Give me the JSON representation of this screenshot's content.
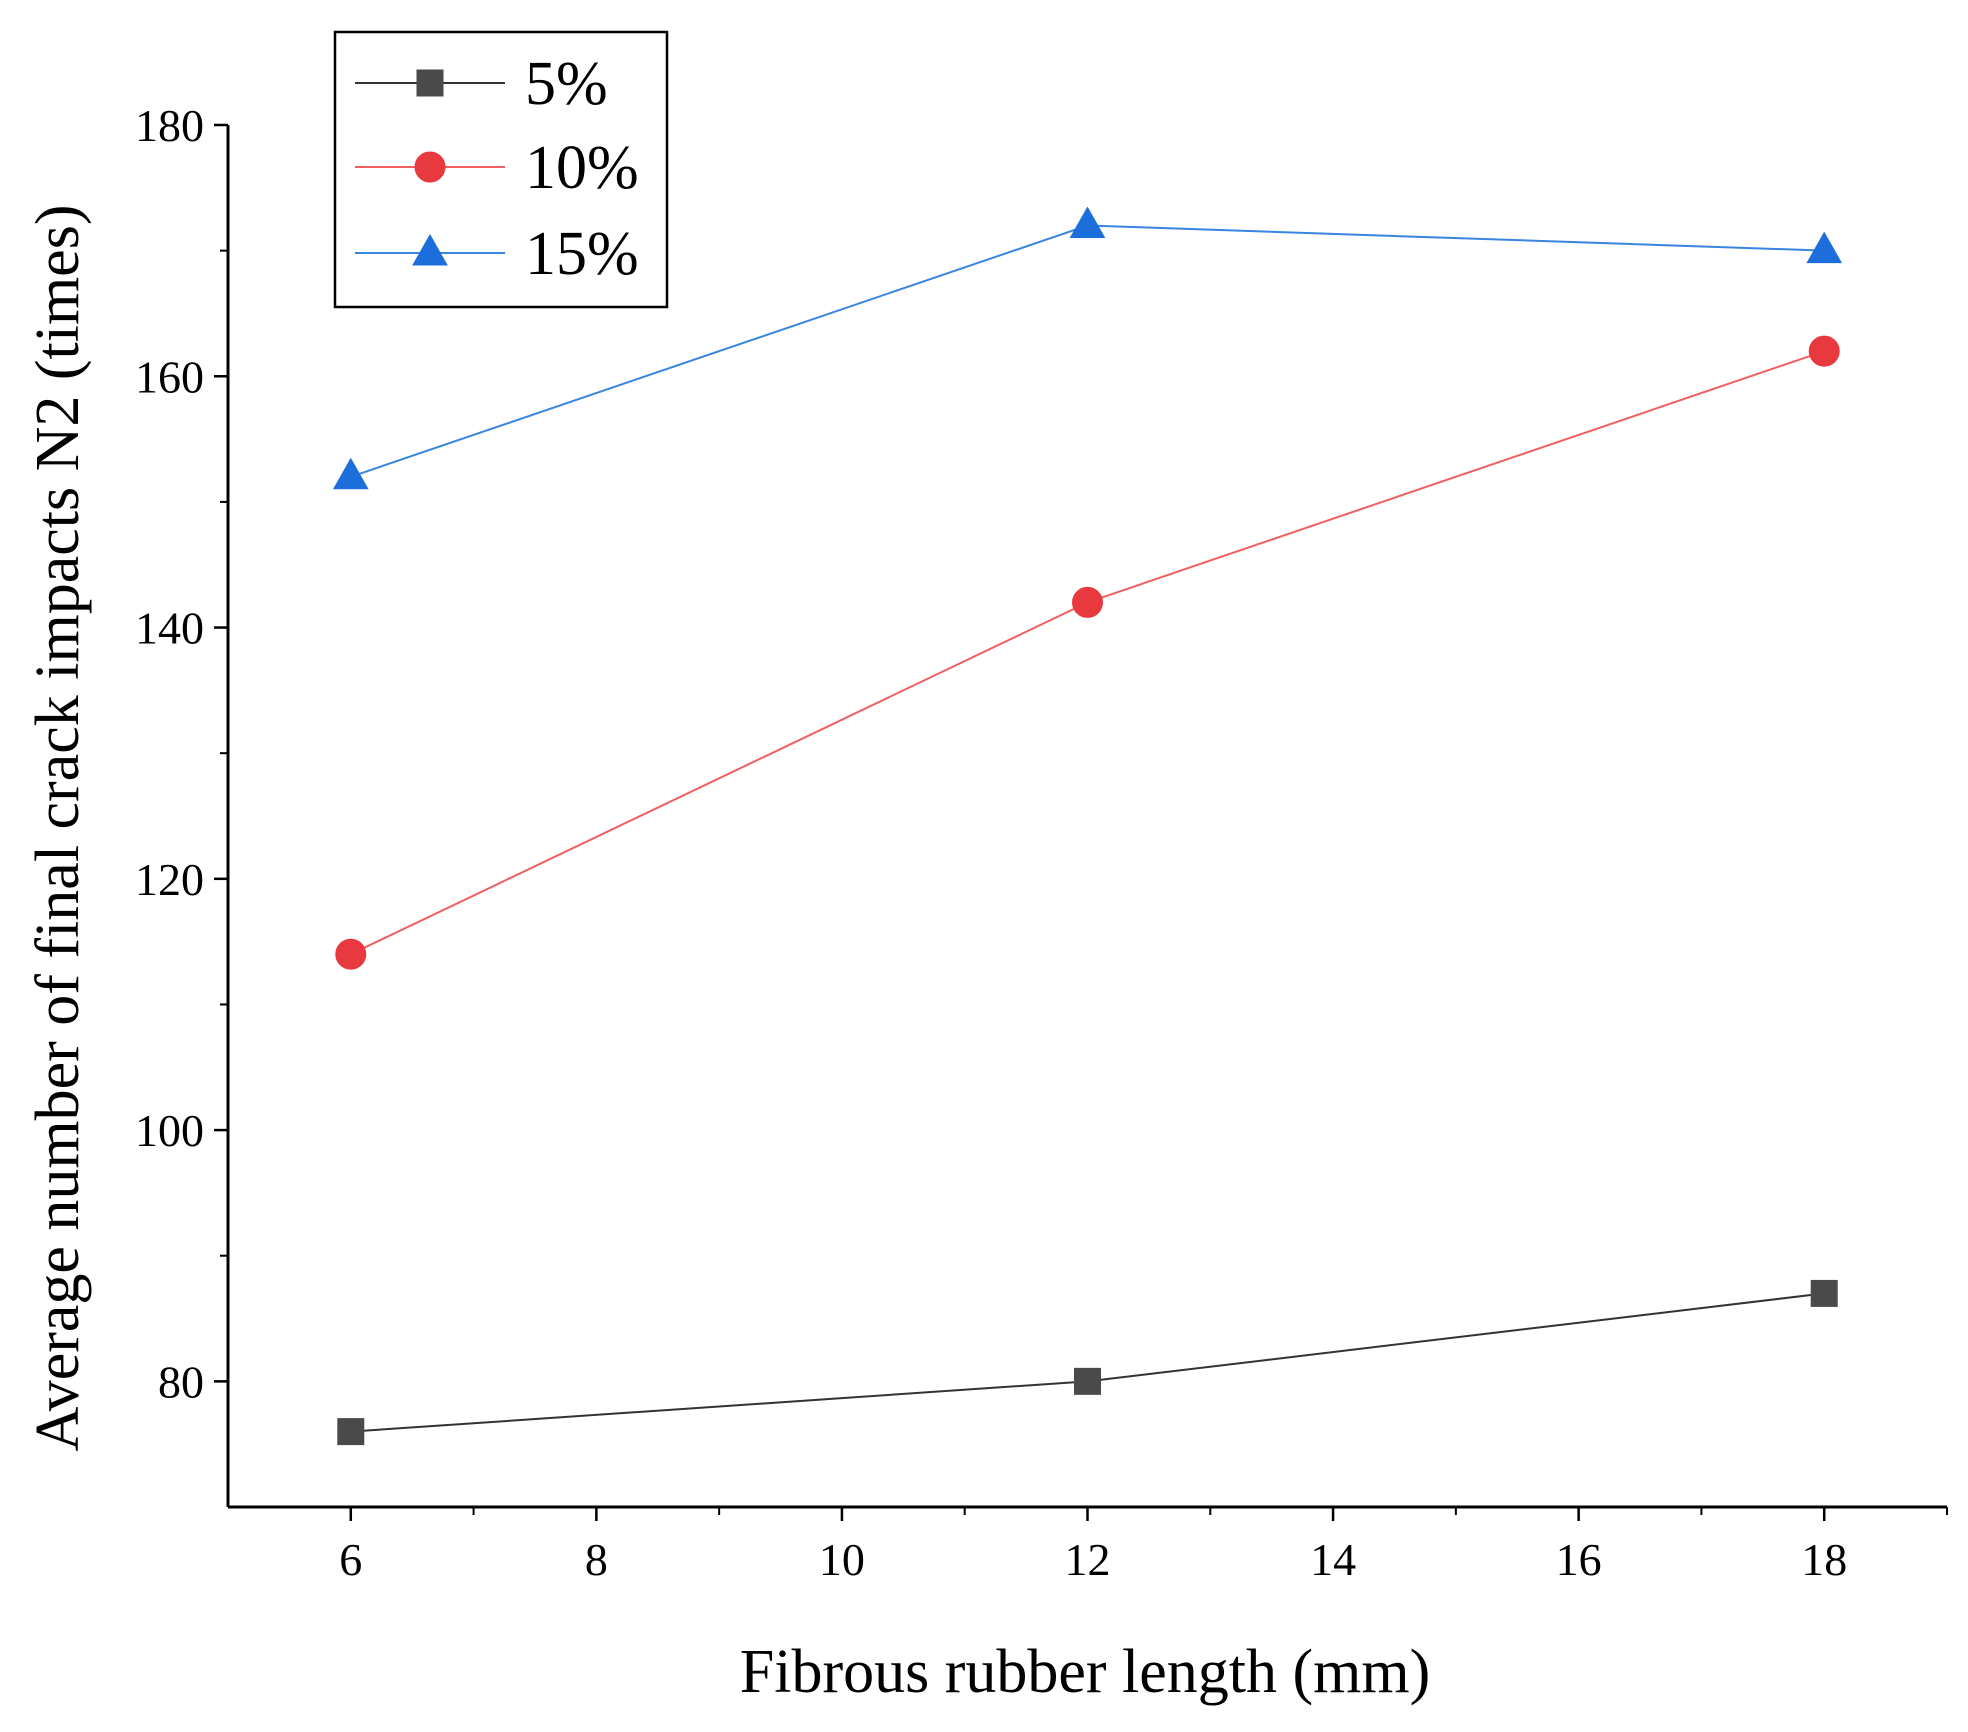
{
  "chart_data": {
    "type": "line",
    "title": "",
    "xlabel": "Fibrous rubber length (mm)",
    "ylabel": "Average number of final crack impacts N2 (times)",
    "xlim": [
      5,
      19
    ],
    "ylim": [
      70,
      180
    ],
    "x_ticks": [
      6,
      8,
      10,
      12,
      14,
      16,
      18
    ],
    "x_minor_ticks": [
      7,
      9,
      11,
      13,
      15,
      17,
      19
    ],
    "y_ticks": [
      80,
      100,
      120,
      140,
      160,
      180
    ],
    "y_minor_ticks": [
      90,
      110,
      130,
      150,
      170
    ],
    "grid": false,
    "legend_position": "top-left",
    "x": [
      6,
      12,
      18
    ],
    "series": [
      {
        "name": "5%",
        "marker": "square",
        "color": "#4a4a4a",
        "line_color": "#333333",
        "values": [
          76,
          80,
          87
        ]
      },
      {
        "name": "10%",
        "marker": "circle",
        "color": "#e8393f",
        "line_color": "#f06060",
        "values": [
          114,
          142,
          162
        ]
      },
      {
        "name": "15%",
        "marker": "triangle",
        "color": "#1c6fdb",
        "line_color": "#3a85e0",
        "values": [
          152,
          172,
          170
        ]
      }
    ]
  }
}
